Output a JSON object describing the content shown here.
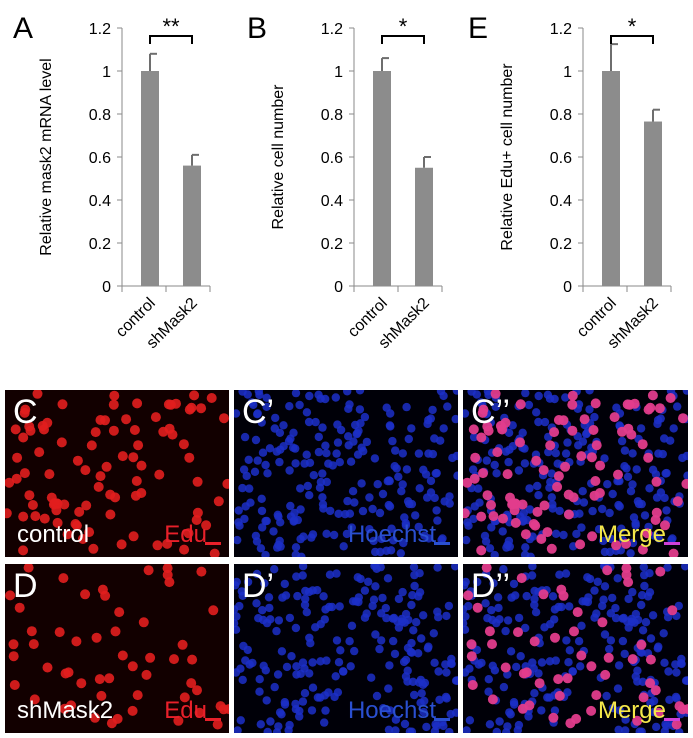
{
  "chart_data": [
    {
      "type": "bar",
      "panel_label": "A",
      "categories": [
        "control",
        "shMask2"
      ],
      "values": [
        1.0,
        0.56
      ],
      "errors": [
        0.08,
        0.05
      ],
      "ylabel": "Relative mask2 mRNA level",
      "ylim": [
        0,
        1.2
      ],
      "yticks": [
        0,
        0.2,
        0.4,
        0.6,
        0.8,
        1,
        1.2
      ],
      "significance": "**",
      "bar_color": "#8c8c8c",
      "grid": false
    },
    {
      "type": "bar",
      "panel_label": "B",
      "categories": [
        "control",
        "shMask2"
      ],
      "values": [
        1.0,
        0.55
      ],
      "errors": [
        0.06,
        0.05
      ],
      "ylabel": "Relative cell number",
      "ylim": [
        0,
        1.2
      ],
      "yticks": [
        0,
        0.2,
        0.4,
        0.6,
        0.8,
        1,
        1.2
      ],
      "significance": "*",
      "bar_color": "#8c8c8c",
      "grid": false
    },
    {
      "type": "bar",
      "panel_label": "E",
      "categories": [
        "control",
        "shMask2"
      ],
      "values": [
        1.0,
        0.765
      ],
      "errors": [
        0.125,
        0.055
      ],
      "ylabel": "Relative Edu+ cell number",
      "ylim": [
        0,
        1.2
      ],
      "yticks": [
        0,
        0.2,
        0.4,
        0.6,
        0.8,
        1,
        1.2
      ],
      "significance": "*",
      "bar_color": "#8c8c8c",
      "grid": false
    }
  ],
  "micrographs": [
    {
      "label": "C",
      "condition": "control",
      "stain": "Edu",
      "stain_color": "#e8202a",
      "nuclei": "red"
    },
    {
      "label": "C’",
      "condition": "",
      "stain": "Hoechst",
      "stain_color": "#2a4fd0",
      "nuclei": "blue"
    },
    {
      "label": "C’’",
      "condition": "",
      "stain": "Merge",
      "stain_color": "#f5e84a",
      "nuclei": "merge"
    },
    {
      "label": "D",
      "condition": "shMask2",
      "stain": "Edu",
      "stain_color": "#e8202a",
      "nuclei": "red"
    },
    {
      "label": "D’",
      "condition": "",
      "stain": "Hoechst",
      "stain_color": "#2a4fd0",
      "nuclei": "blue"
    },
    {
      "label": "D’’",
      "condition": "",
      "stain": "Merge",
      "stain_color": "#f5e84a",
      "nuclei": "merge"
    }
  ]
}
